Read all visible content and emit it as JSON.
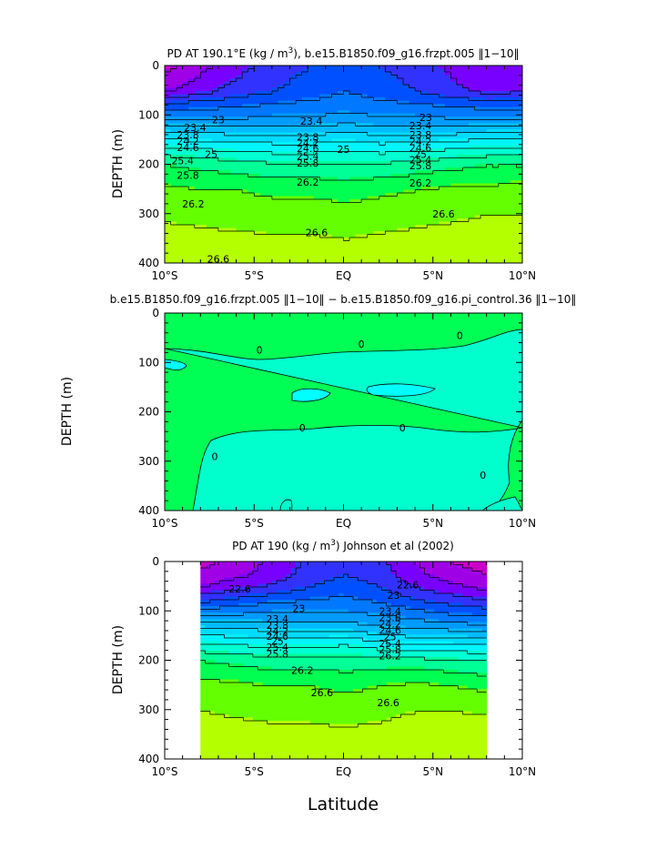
{
  "figure": {
    "xlabel": "Latitude",
    "x_tick_labels": [
      "10°S",
      "5°S",
      "EQ",
      "5°N",
      "10°N"
    ],
    "y_tick_labels": [
      "0",
      "100",
      "200",
      "300",
      "400"
    ]
  },
  "chart_data": [
    {
      "type": "contour",
      "title_parts": [
        "PD AT 190.1°E (kg / m",
        "3",
        "), b.e15.B1850.f09_g16.frzpt.005 ‖1−10‖"
      ],
      "ylabel": "DEPTH (m)",
      "xlim": [
        -10,
        10
      ],
      "ylim": [
        400,
        0
      ],
      "contour_interval": 0.4,
      "field": {
        "lat": [
          -10,
          -8,
          -6,
          -4,
          -2,
          0,
          2,
          4,
          6,
          8,
          10
        ],
        "depth": [
          0,
          25,
          50,
          75,
          100,
          125,
          150,
          175,
          200,
          250,
          300,
          350,
          400
        ],
        "values": [
          [
            21.3,
            21.7,
            22.1,
            22.4,
            22.6,
            22.7,
            22.6,
            22.4,
            22.1,
            21.8,
            21.9
          ],
          [
            21.5,
            21.9,
            22.2,
            22.5,
            22.7,
            22.9,
            22.7,
            22.5,
            22.2,
            21.9,
            22.0
          ],
          [
            21.8,
            22.1,
            22.4,
            22.6,
            22.8,
            23.0,
            22.8,
            22.6,
            22.3,
            22.1,
            22.2
          ],
          [
            22.6,
            22.8,
            22.9,
            23.0,
            23.1,
            23.2,
            23.1,
            23.0,
            22.9,
            22.8,
            22.8
          ],
          [
            23.3,
            23.3,
            23.3,
            23.4,
            23.4,
            23.5,
            23.4,
            23.4,
            23.3,
            23.3,
            23.3
          ],
          [
            24.0,
            24.0,
            23.9,
            23.9,
            23.9,
            24.0,
            23.9,
            23.9,
            23.9,
            24.0,
            24.0
          ],
          [
            24.7,
            24.6,
            24.5,
            24.5,
            24.5,
            24.6,
            24.5,
            24.5,
            24.6,
            24.7,
            24.7
          ],
          [
            25.3,
            25.2,
            25.1,
            25.0,
            25.0,
            25.1,
            25.0,
            25.1,
            25.2,
            25.3,
            25.3
          ],
          [
            25.8,
            25.7,
            25.6,
            25.5,
            25.5,
            25.5,
            25.5,
            25.6,
            25.7,
            25.8,
            25.8
          ],
          [
            26.3,
            26.2,
            26.2,
            26.1,
            26.1,
            26.0,
            26.1,
            26.2,
            26.3,
            26.3,
            26.4
          ],
          [
            26.55,
            26.5,
            26.45,
            26.4,
            26.42,
            26.4,
            26.45,
            26.5,
            26.55,
            26.6,
            26.6
          ],
          [
            26.72,
            26.7,
            26.68,
            26.65,
            26.65,
            26.6,
            26.65,
            26.7,
            26.72,
            26.74,
            26.75
          ],
          [
            26.85,
            26.84,
            26.82,
            26.8,
            26.8,
            26.78,
            26.8,
            26.82,
            26.84,
            26.85,
            26.86
          ]
        ]
      },
      "contour_labels": [
        {
          "text": "23",
          "lat": -7.0,
          "depth": 110
        },
        {
          "text": "23.4",
          "lat": -8.3,
          "depth": 125
        },
        {
          "text": "23.8",
          "lat": -8.7,
          "depth": 140
        },
        {
          "text": "24.2",
          "lat": -8.7,
          "depth": 153
        },
        {
          "text": "24.6",
          "lat": -8.7,
          "depth": 166
        },
        {
          "text": "25",
          "lat": -7.4,
          "depth": 180
        },
        {
          "text": "25.4",
          "lat": -9.0,
          "depth": 193
        },
        {
          "text": "25.8",
          "lat": -8.7,
          "depth": 222
        },
        {
          "text": "26.2",
          "lat": -8.4,
          "depth": 280
        },
        {
          "text": "26.6",
          "lat": -7.0,
          "depth": 392
        },
        {
          "text": "23.4",
          "lat": -1.8,
          "depth": 112
        },
        {
          "text": "23.8",
          "lat": -2.0,
          "depth": 145
        },
        {
          "text": "24.2",
          "lat": -2.0,
          "depth": 157
        },
        {
          "text": "24.6",
          "lat": -2.0,
          "depth": 168
        },
        {
          "text": "25",
          "lat": 0.0,
          "depth": 170
        },
        {
          "text": "25.4",
          "lat": -2.0,
          "depth": 183
        },
        {
          "text": "25.8",
          "lat": -2.0,
          "depth": 197
        },
        {
          "text": "26.2",
          "lat": -2.0,
          "depth": 236
        },
        {
          "text": "26.6",
          "lat": -1.5,
          "depth": 338
        },
        {
          "text": "23",
          "lat": 4.6,
          "depth": 105
        },
        {
          "text": "23.4",
          "lat": 4.3,
          "depth": 122
        },
        {
          "text": "23.8",
          "lat": 4.3,
          "depth": 140
        },
        {
          "text": "24.2",
          "lat": 4.3,
          "depth": 154
        },
        {
          "text": "24.6",
          "lat": 4.3,
          "depth": 167
        },
        {
          "text": "25",
          "lat": 4.3,
          "depth": 180
        },
        {
          "text": "25.4",
          "lat": 4.3,
          "depth": 191
        },
        {
          "text": "25.8",
          "lat": 4.3,
          "depth": 203
        },
        {
          "text": "26.2",
          "lat": 4.3,
          "depth": 238
        },
        {
          "text": "26.6",
          "lat": 5.6,
          "depth": 300
        }
      ]
    },
    {
      "type": "contour",
      "title_parts": [
        "b.e15.B1850.f09_g16.frzpt.005 ‖1−10‖ − b.e15.B1850.f09_g16.pi_control.36 ‖1−10‖"
      ],
      "ylabel": "DEPTH (m)",
      "xlim": [
        -10,
        10
      ],
      "ylim": [
        400,
        0
      ],
      "contour_interval": 0.4,
      "regions": [
        {
          "name": "negative-difference",
          "color": "#00ffcc"
        },
        {
          "name": "more-negative-pocket",
          "color": "#00ffff"
        },
        {
          "name": "non-negative",
          "color": "#00ff55"
        }
      ],
      "contour_labels": [
        {
          "text": "0",
          "lat": -4.7,
          "depth": 75
        },
        {
          "text": "0",
          "lat": 1.0,
          "depth": 63
        },
        {
          "text": "0",
          "lat": 6.5,
          "depth": 45
        },
        {
          "text": "0",
          "lat": -2.3,
          "depth": 232
        },
        {
          "text": "0",
          "lat": 3.3,
          "depth": 232
        },
        {
          "text": "0",
          "lat": -7.2,
          "depth": 290
        },
        {
          "text": "0",
          "lat": 7.8,
          "depth": 328
        }
      ]
    },
    {
      "type": "contour",
      "title_parts": [
        "PD AT 190 (kg / m",
        "3",
        ") Johnson et al (2002)"
      ],
      "ylabel": "DEPTH (m)",
      "xlim": [
        -10,
        10
      ],
      "ylim": [
        400,
        0
      ],
      "data_xlim": [
        -8,
        8
      ],
      "contour_interval": 0.4,
      "field": {
        "lat": [
          -8,
          -6,
          -4,
          -2,
          0,
          2,
          4,
          6,
          8
        ],
        "depth": [
          0,
          25,
          50,
          75,
          100,
          125,
          150,
          175,
          200,
          250,
          300,
          350,
          400
        ],
        "values": [
          [
            21.3,
            21.6,
            21.9,
            22.3,
            22.5,
            22.3,
            21.8,
            21.4,
            21.2
          ],
          [
            21.5,
            21.7,
            22.0,
            22.4,
            22.6,
            22.4,
            21.9,
            21.6,
            21.4
          ],
          [
            21.8,
            22.1,
            22.3,
            22.6,
            22.8,
            22.6,
            22.2,
            21.9,
            21.7
          ],
          [
            22.5,
            22.7,
            22.9,
            23.0,
            23.1,
            22.9,
            22.6,
            22.4,
            22.2
          ],
          [
            23.2,
            23.3,
            23.4,
            23.4,
            23.4,
            23.3,
            23.1,
            22.9,
            22.8
          ],
          [
            24.0,
            24.0,
            23.9,
            23.9,
            23.9,
            23.7,
            23.6,
            23.5,
            23.4
          ],
          [
            24.7,
            24.6,
            24.5,
            24.5,
            24.6,
            24.3,
            24.2,
            24.2,
            24.1
          ],
          [
            25.3,
            25.2,
            25.1,
            25.1,
            25.2,
            25.0,
            24.9,
            24.9,
            24.8
          ],
          [
            25.8,
            25.7,
            25.6,
            25.6,
            25.6,
            25.6,
            25.6,
            25.5,
            25.4
          ],
          [
            26.35,
            26.3,
            26.2,
            26.2,
            26.1,
            26.2,
            26.3,
            26.2,
            26.1
          ],
          [
            26.6,
            26.55,
            26.5,
            26.5,
            26.45,
            26.5,
            26.6,
            26.6,
            26.55
          ],
          [
            26.75,
            26.72,
            26.7,
            26.7,
            26.68,
            26.72,
            26.8,
            26.82,
            26.8
          ],
          [
            26.9,
            26.9,
            26.88,
            26.86,
            26.85,
            26.88,
            26.92,
            26.95,
            26.95
          ]
        ]
      },
      "contour_labels": [
        {
          "text": "22.6",
          "lat": -5.8,
          "depth": 55
        },
        {
          "text": "23",
          "lat": -2.5,
          "depth": 95
        },
        {
          "text": "23.4",
          "lat": -3.7,
          "depth": 116
        },
        {
          "text": "23.8",
          "lat": -3.7,
          "depth": 129
        },
        {
          "text": "24.2",
          "lat": -3.7,
          "depth": 141
        },
        {
          "text": "24.6",
          "lat": -3.7,
          "depth": 151
        },
        {
          "text": "25",
          "lat": -3.7,
          "depth": 161
        },
        {
          "text": "25.4",
          "lat": -3.7,
          "depth": 173
        },
        {
          "text": "25.8",
          "lat": -3.7,
          "depth": 187
        },
        {
          "text": "26.2",
          "lat": -2.3,
          "depth": 220
        },
        {
          "text": "26.6",
          "lat": -1.2,
          "depth": 265
        },
        {
          "text": "22.6",
          "lat": 3.6,
          "depth": 47
        },
        {
          "text": "23",
          "lat": 2.8,
          "depth": 68
        },
        {
          "text": "23.4",
          "lat": 2.6,
          "depth": 100
        },
        {
          "text": "23.8",
          "lat": 2.6,
          "depth": 113
        },
        {
          "text": "24.2",
          "lat": 2.6,
          "depth": 126
        },
        {
          "text": "24.6",
          "lat": 2.6,
          "depth": 139
        },
        {
          "text": "25",
          "lat": 2.6,
          "depth": 152
        },
        {
          "text": "25.4",
          "lat": 2.6,
          "depth": 166
        },
        {
          "text": "25.8",
          "lat": 2.6,
          "depth": 178
        },
        {
          "text": "26.2",
          "lat": 2.6,
          "depth": 191
        },
        {
          "text": "26.6",
          "lat": 2.5,
          "depth": 286
        }
      ]
    }
  ],
  "palette": [
    "#c800c8",
    "#a000e6",
    "#7800ff",
    "#3232ff",
    "#0050ff",
    "#0078ff",
    "#009bff",
    "#00bbff",
    "#00dcff",
    "#00f5ff",
    "#00ffd2",
    "#00ff96",
    "#00ff50",
    "#64ff00",
    "#b4ff00",
    "#e6ff00",
    "#ffe600",
    "#ffc800",
    "#ffaa00",
    "#ff8c00",
    "#ff6e00",
    "#ff5000",
    "#ff3200",
    "#f01400",
    "#d20000",
    "#c00000"
  ]
}
